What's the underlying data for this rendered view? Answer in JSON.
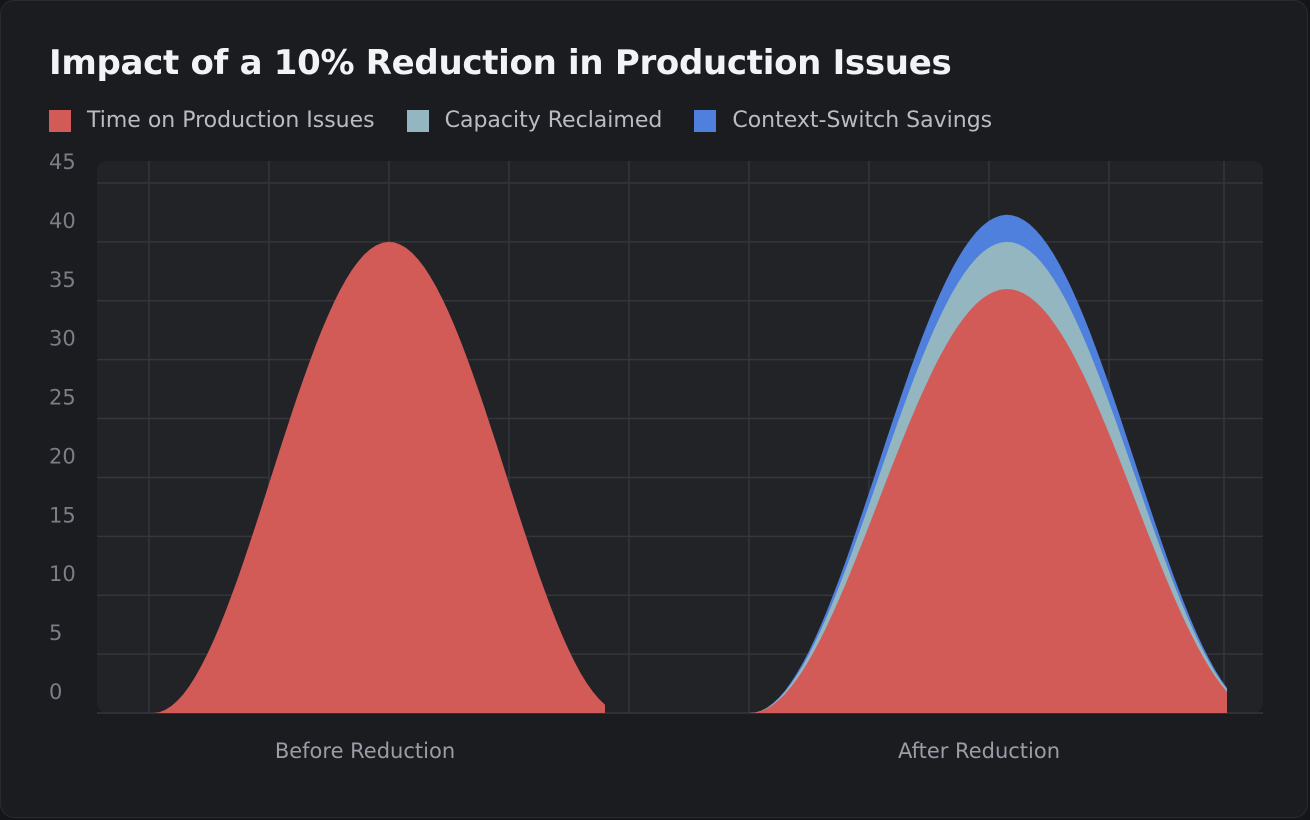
{
  "title": "Impact of a 10% Reduction in Production Issues",
  "legend": [
    {
      "label": "Time on Production Issues",
      "color": "#d25b57"
    },
    {
      "label": "Capacity Reclaimed",
      "color": "#93b6c0"
    },
    {
      "label": "Context-Switch Savings",
      "color": "#4f80de"
    }
  ],
  "chart_data": {
    "type": "area",
    "title": "Impact of a 10% Reduction in Production Issues",
    "xlabel": "",
    "ylabel": "",
    "ylim": [
      0,
      45
    ],
    "yticks": [
      0,
      5,
      10,
      15,
      20,
      25,
      30,
      35,
      40,
      45
    ],
    "categories": [
      "Before Reduction",
      "After Reduction"
    ],
    "stacked": true,
    "grid": true,
    "legend_position": "top-left",
    "series": [
      {
        "name": "Time on Production Issues",
        "color": "#d25b57",
        "values": [
          40,
          36
        ]
      },
      {
        "name": "Capacity Reclaimed",
        "color": "#93b6c0",
        "values": [
          0,
          4
        ]
      },
      {
        "name": "Context-Switch Savings",
        "color": "#4f80de",
        "values": [
          0,
          2.3
        ]
      }
    ]
  }
}
